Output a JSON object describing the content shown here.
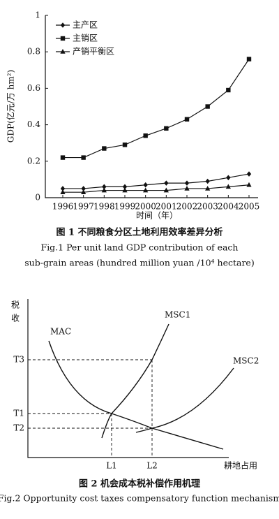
{
  "chart_data": {
    "type": "line",
    "categories": [
      "1996",
      "1997",
      "1998",
      "1999",
      "2000",
      "2001",
      "2002",
      "2003",
      "2004",
      "2005"
    ],
    "y_label": "GDP(亿元/万 hm²)",
    "x_label": "时间（年）",
    "ylim": [
      0,
      1
    ],
    "yticks": [
      0,
      0.2,
      0.4,
      0.6,
      0.8,
      1
    ],
    "legend": "upper left",
    "series": [
      {
        "name": "主产区",
        "color": "#111111",
        "marker": "diamond",
        "values": [
          0.05,
          0.05,
          0.06,
          0.06,
          0.07,
          0.08,
          0.08,
          0.09,
          0.11,
          0.13
        ]
      },
      {
        "name": "主销区",
        "color": "#111111",
        "marker": "square",
        "values": [
          0.22,
          0.22,
          0.27,
          0.29,
          0.34,
          0.38,
          0.43,
          0.5,
          0.59,
          0.76
        ]
      },
      {
        "name": "产销平衡区",
        "color": "#111111",
        "marker": "triangle",
        "values": [
          0.03,
          0.03,
          0.04,
          0.04,
          0.04,
          0.04,
          0.05,
          0.05,
          0.06,
          0.07
        ]
      }
    ]
  },
  "figure1_caption": {
    "cn": "图 1   不同粮食分区土地利用效率差异分析",
    "en_line1": "Fig.1    Per unit land GDP contribution of each",
    "en_line2": "sub-grain areas (hundred million yuan /10⁴ hectare)"
  },
  "figure2": {
    "y_axis_label_1": "税",
    "y_axis_label_2": "收",
    "x_axis_label": "耕地占用",
    "curves": {
      "mac": "MAC",
      "msc1": "MSC1",
      "msc2": "MSC2"
    },
    "y_marks": {
      "t3": "T3",
      "t1": "T1",
      "t2": "T2"
    },
    "x_marks": {
      "l1": "L1",
      "l2": "L2"
    },
    "caption_cn": "图 2   机会成本税补偿作用机理",
    "caption_en": "Fig.2   Opportunity cost taxes compensatory function mechanism"
  }
}
